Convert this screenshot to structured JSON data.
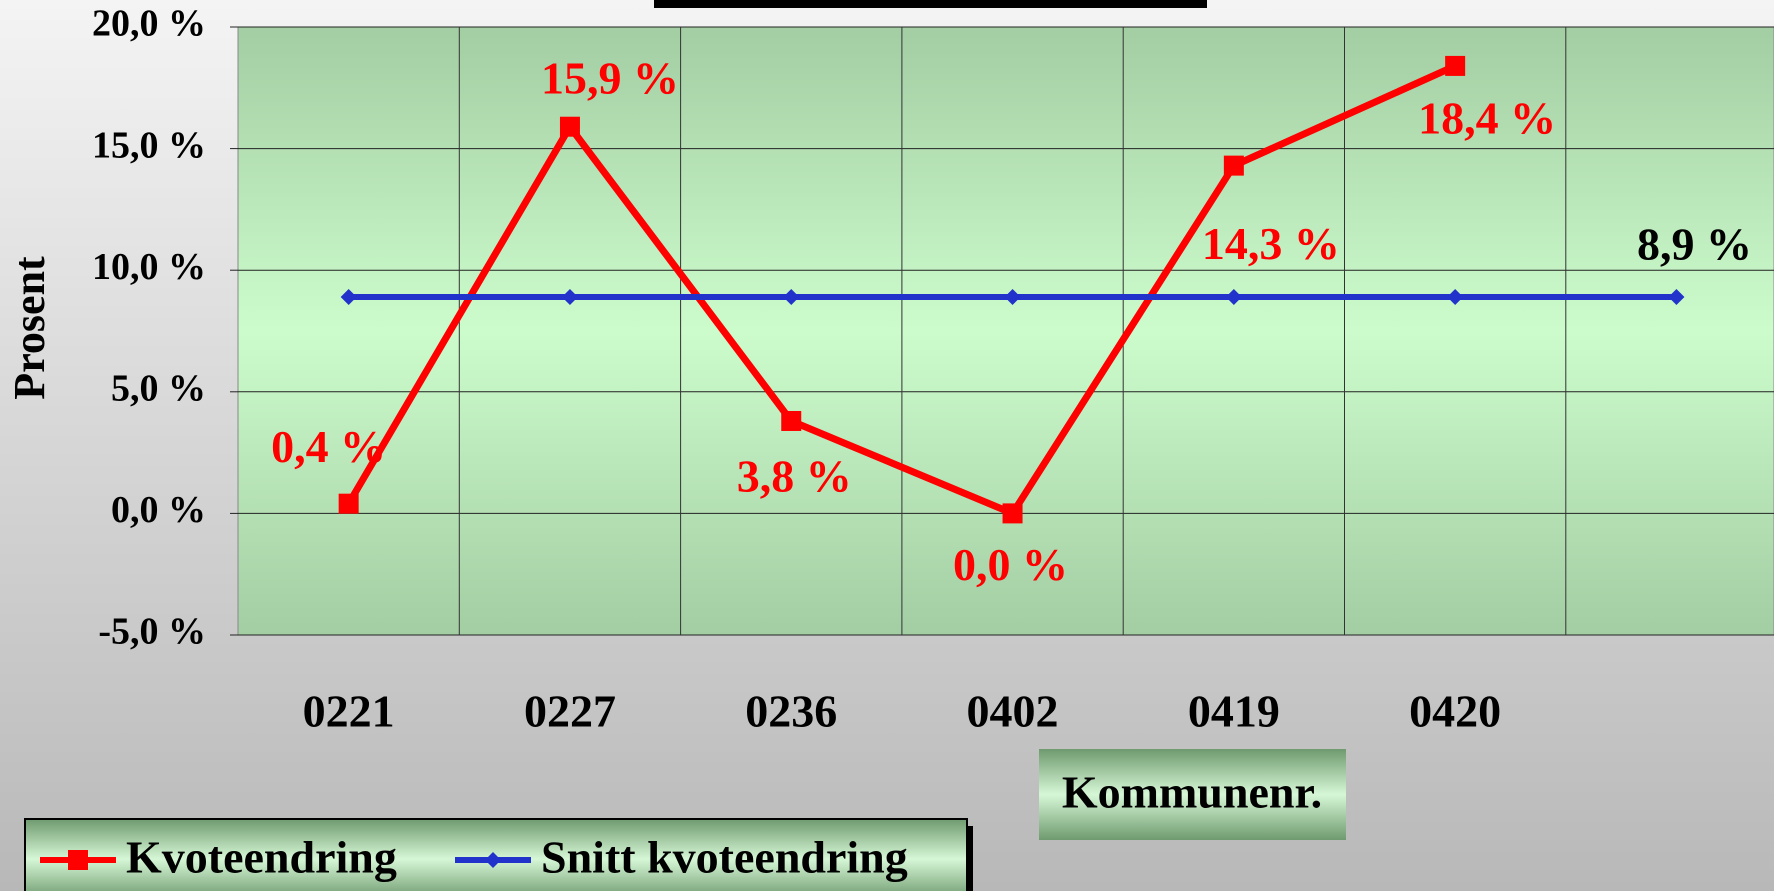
{
  "chart_data": {
    "type": "line",
    "ylabel": "Prosent",
    "xlabel": "Kommunenr.",
    "categories": [
      "0221",
      "0227",
      "0236",
      "0402",
      "0419",
      "0420",
      null
    ],
    "series": [
      {
        "name": "Kvoteendring",
        "color": "#ff0000",
        "values": [
          0.4,
          15.9,
          3.8,
          0.0,
          14.3,
          18.4,
          null
        ],
        "value_labels": [
          "0,4 %",
          "15,9 %",
          "3,8 %",
          "0,0 %",
          "14,3 %",
          "18,4 %",
          null
        ]
      },
      {
        "name": "Snitt kvoteendring",
        "color": "#2233cc",
        "values": [
          8.9,
          8.9,
          8.9,
          8.9,
          8.9,
          8.9,
          8.9
        ],
        "value_labels": [
          null,
          null,
          null,
          null,
          null,
          null,
          "8,9 %"
        ]
      }
    ],
    "ylim": [
      -5,
      20
    ],
    "yticks": [
      {
        "value": -5,
        "label": "-5,0 %"
      },
      {
        "value": 0,
        "label": "0,0 %"
      },
      {
        "value": 5,
        "label": "5,0 %"
      },
      {
        "value": 10,
        "label": "10,0 %"
      },
      {
        "value": 15,
        "label": "15,0 %"
      },
      {
        "value": 20,
        "label": "20,0 %"
      }
    ],
    "grid": true
  }
}
